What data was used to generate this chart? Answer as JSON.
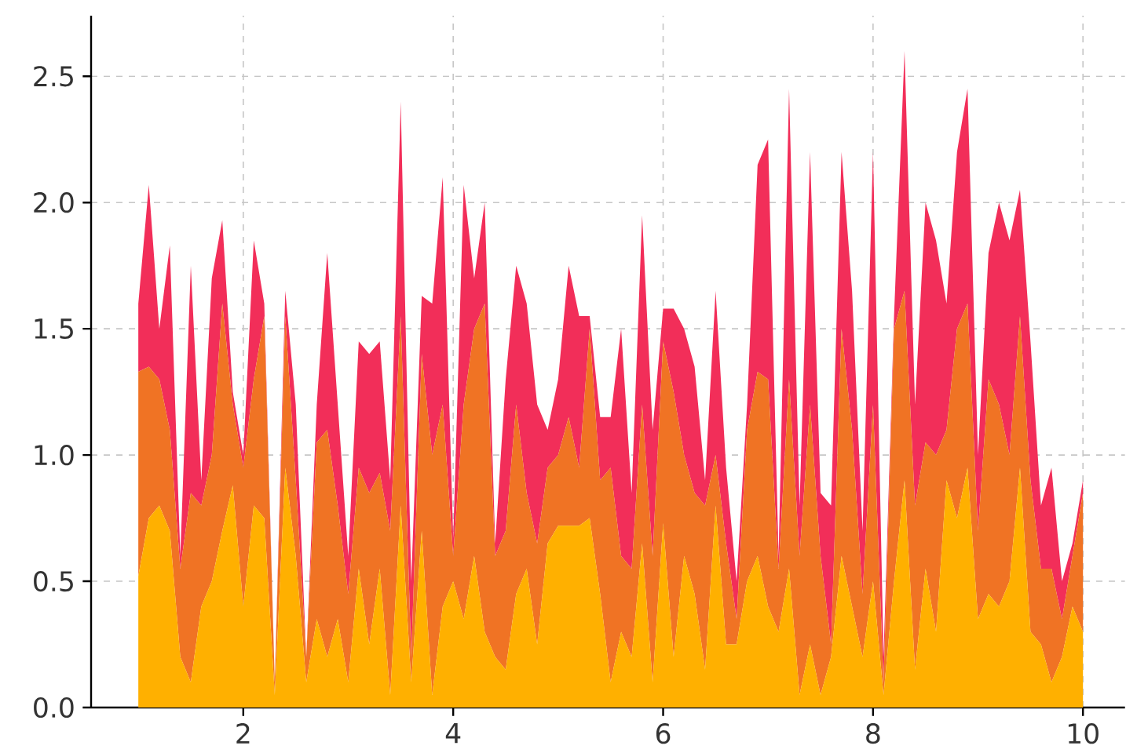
{
  "chart_data": {
    "type": "area",
    "stacked": true,
    "grid": true,
    "xlim": [
      0.55,
      10.4
    ],
    "ylim": [
      0,
      2.74
    ],
    "xticks": [
      2,
      4,
      6,
      8,
      10
    ],
    "yticks": [
      {
        "value": 0,
        "label": "0.0"
      },
      0.5,
      {
        "value": 1,
        "label": "1.0"
      },
      1.5,
      {
        "value": 2,
        "label": "2.0"
      },
      2.5
    ],
    "x": [
      1.0,
      1.1,
      1.2,
      1.3,
      1.4,
      1.5,
      1.6,
      1.7,
      1.8,
      1.9,
      2.0,
      2.1,
      2.2,
      2.3,
      2.4,
      2.5,
      2.6,
      2.7,
      2.8,
      2.9,
      3.0,
      3.1,
      3.2,
      3.3,
      3.4,
      3.5,
      3.6,
      3.7,
      3.8,
      3.9,
      4.0,
      4.1,
      4.2,
      4.3,
      4.4,
      4.5,
      4.6,
      4.7,
      4.8,
      4.9,
      5.0,
      5.1,
      5.2,
      5.3,
      5.4,
      5.5,
      5.6,
      5.7,
      5.8,
      5.9,
      6.0,
      6.1,
      6.2,
      6.3,
      6.4,
      6.5,
      6.6,
      6.7,
      6.8,
      6.9,
      7.0,
      7.1,
      7.2,
      7.3,
      7.4,
      7.5,
      7.6,
      7.7,
      7.8,
      7.9,
      8.0,
      8.1,
      8.2,
      8.3,
      8.4,
      8.5,
      8.6,
      8.7,
      8.8,
      8.9,
      9.0,
      9.1,
      9.2,
      9.3,
      9.4,
      9.5,
      9.6,
      9.7,
      9.8,
      9.9,
      10.0
    ],
    "series": [
      {
        "color": "#ffb000",
        "values": [
          0.52,
          0.75,
          0.8,
          0.7,
          0.2,
          0.1,
          0.4,
          0.5,
          0.7,
          0.88,
          0.4,
          0.8,
          0.75,
          0.05,
          0.95,
          0.6,
          0.1,
          0.35,
          0.2,
          0.35,
          0.1,
          0.55,
          0.25,
          0.55,
          0.05,
          0.8,
          0.1,
          0.7,
          0.05,
          0.4,
          0.5,
          0.35,
          0.6,
          0.3,
          0.2,
          0.15,
          0.45,
          0.55,
          0.25,
          0.65,
          0.72,
          0.72,
          0.72,
          0.75,
          0.45,
          0.1,
          0.3,
          0.2,
          0.65,
          0.1,
          0.73,
          0.2,
          0.6,
          0.45,
          0.15,
          0.8,
          0.25,
          0.25,
          0.5,
          0.6,
          0.4,
          0.3,
          0.55,
          0.05,
          0.25,
          0.05,
          0.2,
          0.6,
          0.4,
          0.2,
          0.5,
          0.05,
          0.5,
          0.9,
          0.15,
          0.55,
          0.3,
          0.9,
          0.75,
          0.95,
          0.35,
          0.45,
          0.4,
          0.5,
          0.95,
          0.3,
          0.25,
          0.1,
          0.2,
          0.4,
          0.3
        ]
      },
      {
        "color": "#f07324",
        "values": [
          0.81,
          0.6,
          0.5,
          0.4,
          0.35,
          0.75,
          0.4,
          0.5,
          0.9,
          0.32,
          0.55,
          0.5,
          0.8,
          0.05,
          0.6,
          0.3,
          0.1,
          0.7,
          0.9,
          0.45,
          0.35,
          0.4,
          0.6,
          0.38,
          0.65,
          0.75,
          0.1,
          0.7,
          0.95,
          0.8,
          0.1,
          0.85,
          0.9,
          1.3,
          0.4,
          0.55,
          0.75,
          0.3,
          0.4,
          0.3,
          0.28,
          0.43,
          0.23,
          0.75,
          0.45,
          0.85,
          0.3,
          0.35,
          0.55,
          0.5,
          0.72,
          1.05,
          0.4,
          0.4,
          0.65,
          0.2,
          0.4,
          0.1,
          0.6,
          0.73,
          0.9,
          0.25,
          0.75,
          0.55,
          0.95,
          0.55,
          0.05,
          0.9,
          0.7,
          0.25,
          0.7,
          0.05,
          1.0,
          0.75,
          0.65,
          0.5,
          0.7,
          0.2,
          0.75,
          0.65,
          0.35,
          0.85,
          0.8,
          0.5,
          0.6,
          0.6,
          0.3,
          0.45,
          0.15,
          0.2,
          0.55
        ]
      },
      {
        "color": "#f22e59",
        "values": [
          0.27,
          0.72,
          0.2,
          0.73,
          0.05,
          0.9,
          0.1,
          0.7,
          0.33,
          0.05,
          0.05,
          0.55,
          0.05,
          0.0,
          0.1,
          0.3,
          0.0,
          0.15,
          0.7,
          0.4,
          0.15,
          0.5,
          0.55,
          0.52,
          0.2,
          0.85,
          0.3,
          0.23,
          0.6,
          0.9,
          0.07,
          0.87,
          0.2,
          0.4,
          0.05,
          0.6,
          0.55,
          0.75,
          0.55,
          0.15,
          0.3,
          0.6,
          0.6,
          0.05,
          0.25,
          0.2,
          0.9,
          0.3,
          0.75,
          0.5,
          0.13,
          0.33,
          0.5,
          0.5,
          0.1,
          0.65,
          0.3,
          0.15,
          0.1,
          0.82,
          0.95,
          0.05,
          1.15,
          0.2,
          1.0,
          0.25,
          0.55,
          0.7,
          0.55,
          0.25,
          1.0,
          0.1,
          0.05,
          0.95,
          0.4,
          0.95,
          0.85,
          0.5,
          0.7,
          0.85,
          0.3,
          0.5,
          0.8,
          0.85,
          0.5,
          0.55,
          0.25,
          0.4,
          0.15,
          0.05,
          0.05
        ]
      }
    ]
  }
}
